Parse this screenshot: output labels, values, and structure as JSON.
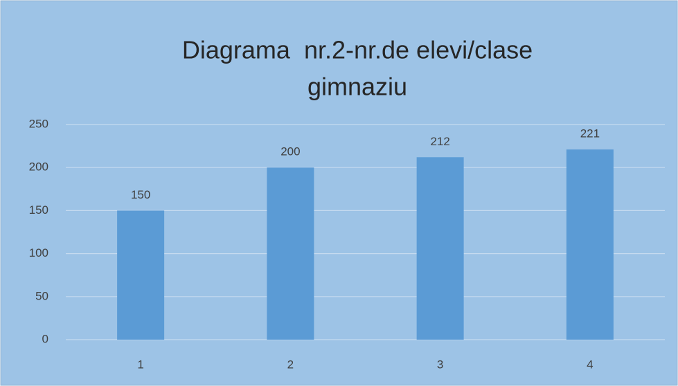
{
  "chart_data": {
    "type": "bar",
    "title": [
      "Diagrama  nr.2-nr.de elevi/clase",
      "gimnaziu"
    ],
    "categories": [
      "1",
      "2",
      "3",
      "4"
    ],
    "values": [
      150,
      200,
      212,
      221
    ],
    "color": "#5b9bd5",
    "ylim": [
      0,
      250
    ],
    "yticks": [
      0,
      50,
      100,
      150,
      200,
      250
    ],
    "grid": true
  }
}
